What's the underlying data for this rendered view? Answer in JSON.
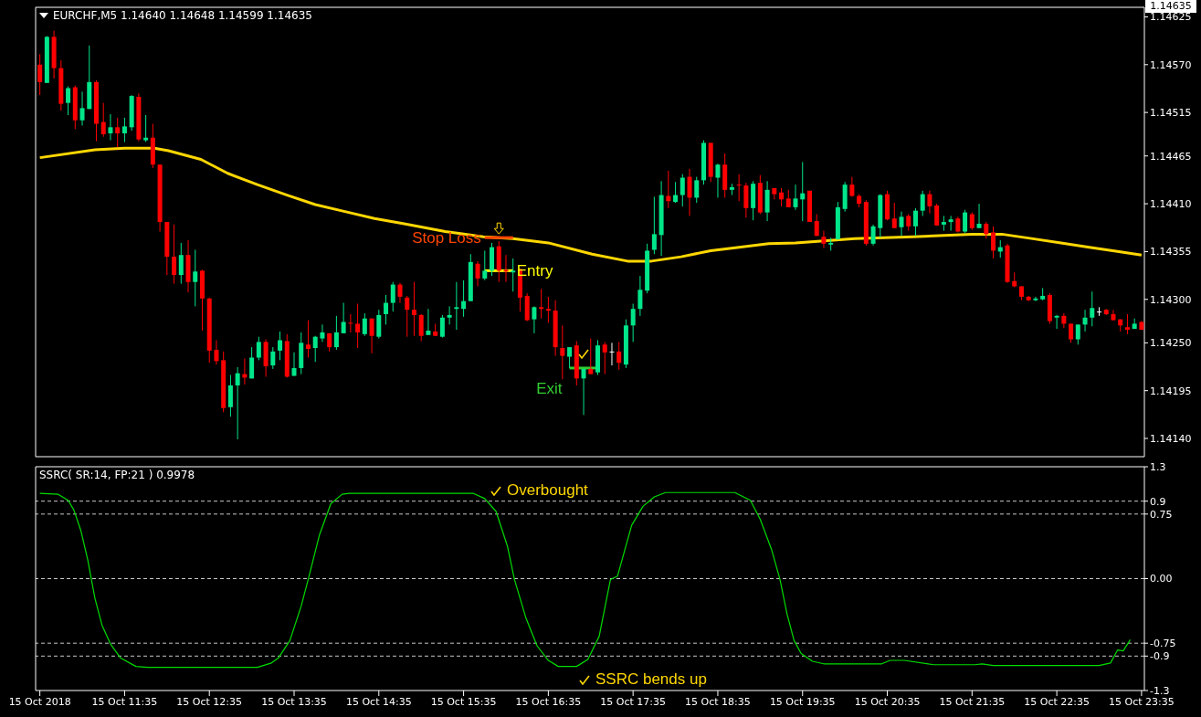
{
  "chart_data": [
    {
      "type": "candlestick",
      "title": "EURCHF,M5 1.14640 1.14648 1.14599 1.14635",
      "tick_labels": "y",
      "x": [
        "2018-10-15T10:35",
        "2018-10-15T10:40",
        "2018-10-15T10:45",
        "2018-10-15T10:50",
        "2018-10-15T10:55",
        "2018-10-15T11:00",
        "2018-10-15T11:05",
        "2018-10-15T11:10",
        "2018-10-15T11:15",
        "2018-10-15T11:20",
        "2018-10-15T11:25",
        "2018-10-15T11:30",
        "2018-10-15T11:35",
        "2018-10-15T11:40",
        "2018-10-15T11:45",
        "2018-10-15T11:50",
        "2018-10-15T11:55",
        "2018-10-15T12:00",
        "2018-10-15T12:05",
        "2018-10-15T12:10",
        "2018-10-15T12:15",
        "2018-10-15T12:20",
        "2018-10-15T12:25",
        "2018-10-15T12:30",
        "2018-10-15T12:35",
        "2018-10-15T12:40",
        "2018-10-15T12:45",
        "2018-10-15T12:50",
        "2018-10-15T12:55",
        "2018-10-15T13:00",
        "2018-10-15T13:05",
        "2018-10-15T13:10",
        "2018-10-15T13:15",
        "2018-10-15T13:20",
        "2018-10-15T13:25",
        "2018-10-15T13:30",
        "2018-10-15T13:35",
        "2018-10-15T13:40",
        "2018-10-15T13:45",
        "2018-10-15T13:50",
        "2018-10-15T13:55",
        "2018-10-15T14:00",
        "2018-10-15T14:05",
        "2018-10-15T14:10",
        "2018-10-15T14:15",
        "2018-10-15T14:20",
        "2018-10-15T14:25",
        "2018-10-15T14:30",
        "2018-10-15T14:35",
        "2018-10-15T14:40",
        "2018-10-15T14:45",
        "2018-10-15T14:50",
        "2018-10-15T14:55",
        "2018-10-15T15:00",
        "2018-10-15T15:05",
        "2018-10-15T15:10",
        "2018-10-15T15:15",
        "2018-10-15T15:20",
        "2018-10-15T15:25",
        "2018-10-15T15:30",
        "2018-10-15T15:35",
        "2018-10-15T15:40",
        "2018-10-15T15:45",
        "2018-10-15T15:50",
        "2018-10-15T15:55",
        "2018-10-15T16:00",
        "2018-10-15T16:05",
        "2018-10-15T16:10",
        "2018-10-15T16:15",
        "2018-10-15T16:20",
        "2018-10-15T16:25",
        "2018-10-15T16:30",
        "2018-10-15T16:35",
        "2018-10-15T16:40",
        "2018-10-15T16:45",
        "2018-10-15T16:50",
        "2018-10-15T16:55",
        "2018-10-15T17:00",
        "2018-10-15T17:05",
        "2018-10-15T17:10",
        "2018-10-15T17:15",
        "2018-10-15T17:20",
        "2018-10-15T17:25",
        "2018-10-15T17:30",
        "2018-10-15T17:35",
        "2018-10-15T17:40",
        "2018-10-15T17:45",
        "2018-10-15T17:50",
        "2018-10-15T17:55",
        "2018-10-15T18:00",
        "2018-10-15T18:05",
        "2018-10-15T18:10",
        "2018-10-15T18:15",
        "2018-10-15T18:20",
        "2018-10-15T18:25",
        "2018-10-15T18:30",
        "2018-10-15T18:35",
        "2018-10-15T18:40",
        "2018-10-15T18:45",
        "2018-10-15T18:50",
        "2018-10-15T18:55",
        "2018-10-15T19:00",
        "2018-10-15T19:05",
        "2018-10-15T19:10",
        "2018-10-15T19:15",
        "2018-10-15T19:20",
        "2018-10-15T19:25",
        "2018-10-15T19:30",
        "2018-10-15T19:35",
        "2018-10-15T19:40",
        "2018-10-15T19:45",
        "2018-10-15T19:50",
        "2018-10-15T19:55",
        "2018-10-15T20:00",
        "2018-10-15T20:05",
        "2018-10-15T20:10",
        "2018-10-15T20:15",
        "2018-10-15T20:20",
        "2018-10-15T20:25",
        "2018-10-15T20:30",
        "2018-10-15T20:35",
        "2018-10-15T20:40",
        "2018-10-15T20:45",
        "2018-10-15T20:50",
        "2018-10-15T20:55",
        "2018-10-15T21:00",
        "2018-10-15T21:05",
        "2018-10-15T21:10",
        "2018-10-15T21:15",
        "2018-10-15T21:20",
        "2018-10-15T21:25",
        "2018-10-15T21:30",
        "2018-10-15T21:35",
        "2018-10-15T21:40",
        "2018-10-15T21:45",
        "2018-10-15T21:50",
        "2018-10-15T21:55",
        "2018-10-15T22:00",
        "2018-10-15T22:05",
        "2018-10-15T22:10",
        "2018-10-15T22:15",
        "2018-10-15T22:20",
        "2018-10-15T22:25",
        "2018-10-15T22:30",
        "2018-10-15T22:35",
        "2018-10-15T22:40",
        "2018-10-15T22:45",
        "2018-10-15T22:50",
        "2018-10-15T22:55",
        "2018-10-15T23:00",
        "2018-10-15T23:05",
        "2018-10-15T23:10",
        "2018-10-15T23:15",
        "2018-10-15T23:20",
        "2018-10-15T23:25",
        "2018-10-15T23:30",
        "2018-10-15T23:35"
      ],
      "ohlc": [
        [
          1.1457,
          1.14582,
          1.14535,
          1.1455
        ],
        [
          1.14549,
          1.14603,
          1.14549,
          1.14602
        ],
        [
          1.14602,
          1.14609,
          1.14554,
          1.14566
        ],
        [
          1.14566,
          1.14575,
          1.14517,
          1.14525
        ],
        [
          1.14526,
          1.14545,
          1.14512,
          1.14543
        ],
        [
          1.14544,
          1.14546,
          1.14496,
          1.14506
        ],
        [
          1.14506,
          1.14539,
          1.145,
          1.1452
        ],
        [
          1.14519,
          1.14592,
          1.14519,
          1.1455
        ],
        [
          1.1455,
          1.14552,
          1.14482,
          1.14502
        ],
        [
          1.14504,
          1.14526,
          1.14487,
          1.1449
        ],
        [
          1.14491,
          1.14513,
          1.14483,
          1.14498
        ],
        [
          1.14498,
          1.14509,
          1.14475,
          1.14491
        ],
        [
          1.14491,
          1.14509,
          1.14481,
          1.14499
        ],
        [
          1.14498,
          1.14535,
          1.14494,
          1.14534
        ],
        [
          1.14533,
          1.14537,
          1.14482,
          1.14484
        ],
        [
          1.14483,
          1.14512,
          1.14481,
          1.14486
        ],
        [
          1.14486,
          1.14502,
          1.14451,
          1.14455
        ],
        [
          1.14455,
          1.14455,
          1.14378,
          1.14389
        ],
        [
          1.14389,
          1.14389,
          1.14328,
          1.14349
        ],
        [
          1.14349,
          1.14386,
          1.14318,
          1.14328
        ],
        [
          1.14328,
          1.14365,
          1.14318,
          1.14351
        ],
        [
          1.14351,
          1.14368,
          1.14308,
          1.1432
        ],
        [
          1.1432,
          1.14357,
          1.14292,
          1.14332
        ],
        [
          1.14333,
          1.14334,
          1.14264,
          1.14301
        ],
        [
          1.14301,
          1.14302,
          1.14227,
          1.14241
        ],
        [
          1.14242,
          1.14253,
          1.14225,
          1.14229
        ],
        [
          1.1423,
          1.1424,
          1.1417,
          1.14175
        ],
        [
          1.14176,
          1.14213,
          1.14165,
          1.14201
        ],
        [
          1.14201,
          1.14222,
          1.14139,
          1.14215
        ],
        [
          1.14214,
          1.14232,
          1.14202,
          1.1421
        ],
        [
          1.14209,
          1.14245,
          1.14209,
          1.14233
        ],
        [
          1.14233,
          1.14257,
          1.1423,
          1.14251
        ],
        [
          1.14251,
          1.14254,
          1.14211,
          1.14223
        ],
        [
          1.14224,
          1.14245,
          1.1422,
          1.1424
        ],
        [
          1.14241,
          1.14263,
          1.1423,
          1.14253
        ],
        [
          1.14252,
          1.1426,
          1.1421,
          1.14211
        ],
        [
          1.14212,
          1.14239,
          1.14212,
          1.14221
        ],
        [
          1.14221,
          1.14262,
          1.14214,
          1.1425
        ],
        [
          1.14248,
          1.14276,
          1.14233,
          1.14243
        ],
        [
          1.14244,
          1.14258,
          1.14228,
          1.14257
        ],
        [
          1.14255,
          1.14271,
          1.14251,
          1.14262
        ],
        [
          1.14261,
          1.14261,
          1.1424,
          1.14245
        ],
        [
          1.14245,
          1.14281,
          1.14242,
          1.14262
        ],
        [
          1.14261,
          1.14296,
          1.14261,
          1.14274
        ],
        [
          1.14273,
          1.14283,
          1.14262,
          1.14272
        ],
        [
          1.14272,
          1.14295,
          1.14244,
          1.14262
        ],
        [
          1.1426,
          1.14284,
          1.14258,
          1.14278
        ],
        [
          1.14278,
          1.14278,
          1.14238,
          1.14258
        ],
        [
          1.14257,
          1.14288,
          1.14255,
          1.14282
        ],
        [
          1.14283,
          1.14305,
          1.14271,
          1.14296
        ],
        [
          1.14296,
          1.1432,
          1.14286,
          1.14317
        ],
        [
          1.14317,
          1.14319,
          1.14296,
          1.14303
        ],
        [
          1.14302,
          1.14304,
          1.14257,
          1.14288
        ],
        [
          1.14288,
          1.1432,
          1.14258,
          1.14282
        ],
        [
          1.14282,
          1.14283,
          1.14252,
          1.14258
        ],
        [
          1.14259,
          1.14289,
          1.14259,
          1.14264
        ],
        [
          1.14263,
          1.14272,
          1.14258,
          1.14258
        ],
        [
          1.14257,
          1.14282,
          1.14256,
          1.14279
        ],
        [
          1.14279,
          1.14292,
          1.14271,
          1.14282
        ],
        [
          1.14289,
          1.1432,
          1.14265,
          1.14291
        ],
        [
          1.14289,
          1.14322,
          1.1428,
          1.14298
        ],
        [
          1.14298,
          1.14352,
          1.14298,
          1.14343
        ],
        [
          1.14341,
          1.14344,
          1.14315,
          1.14324
        ],
        [
          1.14324,
          1.14356,
          1.14322,
          1.14333
        ],
        [
          1.14333,
          1.14365,
          1.14327,
          1.1436
        ],
        [
          1.14361,
          1.14367,
          1.1432,
          1.14333
        ],
        [
          1.14334,
          1.14351,
          1.1432,
          1.14332
        ],
        [
          1.14331,
          1.14347,
          1.14309,
          1.14333
        ],
        [
          1.14335,
          1.14335,
          1.14286,
          1.14302
        ],
        [
          1.14304,
          1.14307,
          1.14275,
          1.14276
        ],
        [
          1.14277,
          1.14292,
          1.14261,
          1.14291
        ],
        [
          1.14291,
          1.14312,
          1.14278,
          1.14289
        ],
        [
          1.14289,
          1.14303,
          1.14273,
          1.14287
        ],
        [
          1.14287,
          1.14299,
          1.14235,
          1.14245
        ],
        [
          1.14244,
          1.1427,
          1.14208,
          1.14235
        ],
        [
          1.14234,
          1.14245,
          1.14221,
          1.14245
        ],
        [
          1.14247,
          1.14252,
          1.14201,
          1.14209
        ],
        [
          1.14209,
          1.1422,
          1.14167,
          1.1422
        ],
        [
          1.1422,
          1.14255,
          1.14214,
          1.14214
        ],
        [
          1.14216,
          1.14253,
          1.14213,
          1.14247
        ],
        [
          1.14248,
          1.14251,
          1.14214,
          1.14239
        ],
        [
          1.1424,
          1.1425,
          1.14224,
          1.1424
        ],
        [
          1.1424,
          1.14251,
          1.14219,
          1.14227
        ],
        [
          1.14225,
          1.14277,
          1.14221,
          1.1427
        ],
        [
          1.1427,
          1.14295,
          1.14251,
          1.14289
        ],
        [
          1.14289,
          1.14327,
          1.14281,
          1.14311
        ],
        [
          1.1431,
          1.14364,
          1.14307,
          1.14356
        ],
        [
          1.14357,
          1.14418,
          1.14352,
          1.14375
        ],
        [
          1.14374,
          1.14436,
          1.1435,
          1.1442
        ],
        [
          1.14419,
          1.14448,
          1.14405,
          1.14413
        ],
        [
          1.14412,
          1.14435,
          1.14411,
          1.1442
        ],
        [
          1.1442,
          1.14444,
          1.14407,
          1.1444
        ],
        [
          1.14441,
          1.1445,
          1.14396,
          1.14417
        ],
        [
          1.14417,
          1.14441,
          1.14411,
          1.14437
        ],
        [
          1.14437,
          1.14483,
          1.14432,
          1.1448
        ],
        [
          1.1448,
          1.1448,
          1.14435,
          1.14441
        ],
        [
          1.1444,
          1.14456,
          1.14417,
          1.14455
        ],
        [
          1.14455,
          1.14468,
          1.14417,
          1.14426
        ],
        [
          1.14426,
          1.14433,
          1.1442,
          1.14429
        ],
        [
          1.14432,
          1.14444,
          1.14413,
          1.14431
        ],
        [
          1.14431,
          1.14434,
          1.14394,
          1.14405
        ],
        [
          1.14405,
          1.14436,
          1.14391,
          1.14433
        ],
        [
          1.14434,
          1.14443,
          1.14398,
          1.144
        ],
        [
          1.144,
          1.14436,
          1.1439,
          1.14426
        ],
        [
          1.14428,
          1.14428,
          1.14415,
          1.14421
        ],
        [
          1.14423,
          1.14428,
          1.14407,
          1.14415
        ],
        [
          1.14416,
          1.14426,
          1.14406,
          1.14406
        ],
        [
          1.14406,
          1.14432,
          1.14403,
          1.14416
        ],
        [
          1.14415,
          1.14458,
          1.1439,
          1.14422
        ],
        [
          1.14425,
          1.14425,
          1.14389,
          1.14389
        ],
        [
          1.1439,
          1.14398,
          1.14373,
          1.14373
        ],
        [
          1.14372,
          1.14379,
          1.14359,
          1.14364
        ],
        [
          1.14363,
          1.14371,
          1.14356,
          1.14365
        ],
        [
          1.14369,
          1.14412,
          1.14369,
          1.14406
        ],
        [
          1.14404,
          1.14435,
          1.14401,
          1.14432
        ],
        [
          1.14432,
          1.14441,
          1.14418,
          1.14419
        ],
        [
          1.14419,
          1.14421,
          1.14406,
          1.1441
        ],
        [
          1.14412,
          1.14414,
          1.14362,
          1.14364
        ],
        [
          1.14364,
          1.14386,
          1.14362,
          1.14384
        ],
        [
          1.14382,
          1.14421,
          1.14371,
          1.1442
        ],
        [
          1.14421,
          1.14425,
          1.14391,
          1.14392
        ],
        [
          1.14393,
          1.14411,
          1.14382,
          1.14382
        ],
        [
          1.14383,
          1.14401,
          1.14373,
          1.14395
        ],
        [
          1.14396,
          1.14398,
          1.14379,
          1.14384
        ],
        [
          1.14384,
          1.14405,
          1.14373,
          1.14402
        ],
        [
          1.14402,
          1.14425,
          1.14396,
          1.14421
        ],
        [
          1.14421,
          1.14425,
          1.14399,
          1.14407
        ],
        [
          1.14408,
          1.1441,
          1.14385,
          1.14385
        ],
        [
          1.14386,
          1.14396,
          1.14379,
          1.14389
        ],
        [
          1.14389,
          1.14396,
          1.14379,
          1.14392
        ],
        [
          1.14393,
          1.14395,
          1.14377,
          1.14378
        ],
        [
          1.14378,
          1.14403,
          1.14376,
          1.144
        ],
        [
          1.14398,
          1.144,
          1.1438,
          1.14382
        ],
        [
          1.14382,
          1.1441,
          1.14382,
          1.14387
        ],
        [
          1.14387,
          1.14389,
          1.1437,
          1.14375
        ],
        [
          1.14377,
          1.14384,
          1.14347,
          1.14356
        ],
        [
          1.14355,
          1.14368,
          1.14348,
          1.1436
        ],
        [
          1.14362,
          1.14364,
          1.14319,
          1.1432
        ],
        [
          1.14321,
          1.14331,
          1.14314,
          1.14315
        ],
        [
          1.14315,
          1.14315,
          1.14299,
          1.14303
        ],
        [
          1.14303,
          1.14304,
          1.14298,
          1.14299
        ],
        [
          1.14299,
          1.14303,
          1.14298,
          1.14301
        ],
        [
          1.143,
          1.14313,
          1.14299,
          1.14304
        ],
        [
          1.14305,
          1.14307,
          1.14272,
          1.14275
        ],
        [
          1.14279,
          1.14282,
          1.14266,
          1.14281
        ],
        [
          1.14281,
          1.14284,
          1.14267,
          1.14272
        ],
        [
          1.14272,
          1.14272,
          1.1425,
          1.14254
        ],
        [
          1.14254,
          1.14271,
          1.14248,
          1.14271
        ],
        [
          1.14271,
          1.14288,
          1.14263,
          1.14279
        ],
        [
          1.14279,
          1.14309,
          1.14269,
          1.1429
        ],
        [
          1.14286,
          1.14291,
          1.14281,
          1.14286
        ],
        [
          1.14288,
          1.14289,
          1.14282,
          1.14283
        ],
        [
          1.14283,
          1.14288,
          1.14276,
          1.14276
        ],
        [
          1.14277,
          1.14277,
          1.14263,
          1.1427
        ],
        [
          1.14268,
          1.14283,
          1.1426,
          1.14265
        ],
        [
          1.14266,
          1.14278,
          1.14266,
          1.14272
        ],
        [
          1.14274,
          1.14275,
          1.14265,
          1.14265
        ]
      ],
      "colors": [
        "#ff0000",
        "#00e68a",
        "#ff0000",
        "#ff0000",
        "#00e68a",
        "#ff0000",
        "#00e68a",
        "#00e68a",
        "#ff0000",
        "#ff0000",
        "#00e68a",
        "#ff0000",
        "#00e68a",
        "#00e68a",
        "#ff0000",
        "#00e68a",
        "#ff0000",
        "#ff0000",
        "#ff0000",
        "#ff0000",
        "#00e68a",
        "#ff0000",
        "#00e68a",
        "#ff0000",
        "#ff0000",
        "#ff0000",
        "#ff0000",
        "#00e68a",
        "#00e68a",
        "#ff0000",
        "#00e68a",
        "#00e68a",
        "#ff0000",
        "#00e68a",
        "#00e68a",
        "#ff0000",
        "#00e68a",
        "#00e68a",
        "#ff0000",
        "#00e68a",
        "#00e68a",
        "#ff0000",
        "#00e68a",
        "#00e68a",
        "#ff0000",
        "#ff0000",
        "#00e68a",
        "#ff0000",
        "#00e68a",
        "#00e68a",
        "#00e68a",
        "#ff0000",
        "#ff0000",
        "#ff0000",
        "#ff0000",
        "#00e68a",
        "#ff0000",
        "#00e68a",
        "#00e68a",
        "#00e68a",
        "#00e68a",
        "#00e68a",
        "#ff0000",
        "#00e68a",
        "#00e68a",
        "#ff0000",
        "#ff0000",
        "#00e68a",
        "#ff0000",
        "#ff0000",
        "#00e68a",
        "#ff0000",
        "#ff0000",
        "#ff0000",
        "#ff0000",
        "#00e68a",
        "#ff0000",
        "#00e68a",
        "#ff0000",
        "#00e68a",
        "#ff0000",
        "#ffffff",
        "#ff0000",
        "#00e68a",
        "#00e68a",
        "#00e68a",
        "#00e68a",
        "#00e68a",
        "#00e68a",
        "#ff0000",
        "#00e68a",
        "#00e68a",
        "#ff0000",
        "#00e68a",
        "#00e68a",
        "#ff0000",
        "#00e68a",
        "#ff0000",
        "#00e68a",
        "#ff0000",
        "#ff0000",
        "#00e68a",
        "#ff0000",
        "#00e68a",
        "#ff0000",
        "#ff0000",
        "#ff0000",
        "#00e68a",
        "#00e68a",
        "#ff0000",
        "#ff0000",
        "#ff0000",
        "#00e68a",
        "#00e68a",
        "#00e68a",
        "#ff0000",
        "#ff0000",
        "#ff0000",
        "#00e68a",
        "#00e68a",
        "#ff0000",
        "#ff0000",
        "#00e68a",
        "#ff0000",
        "#00e68a",
        "#00e68a",
        "#ff0000",
        "#ff0000",
        "#00e68a",
        "#00e68a",
        "#ff0000",
        "#00e68a",
        "#ff0000",
        "#00e68a",
        "#ff0000",
        "#ff0000",
        "#00e68a",
        "#ff0000",
        "#ff0000",
        "#ff0000",
        "#ff0000",
        "#00e68a",
        "#00e68a",
        "#ff0000",
        "#00e68a",
        "#ff0000",
        "#ff0000",
        "#00e68a",
        "#00e68a",
        "#00e68a",
        "#ffffff",
        "#ff0000",
        "#ff0000",
        "#ff0000",
        "#ff0000",
        "#00e68a",
        "#ff0000"
      ],
      "series": [
        {
          "type": "line",
          "color": "#ffd700",
          "x": [
            "2018-10-15T10:35",
            "2018-10-15T11:14",
            "2018-10-15T11:35",
            "2018-10-15T11:56",
            "2018-10-15T12:06",
            "2018-10-15T12:29",
            "2018-10-15T12:48",
            "2018-10-15T13:09",
            "2018-10-15T13:30",
            "2018-10-15T13:50",
            "2018-10-15T14:11",
            "2018-10-15T14:32",
            "2018-10-15T14:53",
            "2018-10-15T15:22",
            "2018-10-15T15:49",
            "2018-10-15T16:10",
            "2018-10-15T16:35",
            "2018-10-15T17:06",
            "2018-10-15T17:31",
            "2018-10-15T17:48",
            "2018-10-15T18:09",
            "2018-10-15T18:30",
            "2018-10-15T18:50",
            "2018-10-15T19:11",
            "2018-10-15T19:30",
            "2018-10-15T20:12",
            "2018-10-15T20:53",
            "2018-10-15T21:35",
            "2018-10-15T21:56",
            "2018-10-15T22:17",
            "2018-10-15T22:38",
            "2018-10-15T22:58",
            "2018-10-15T23:19",
            "2018-10-15T23:35"
          ],
          "values": [
            1.14463,
            1.14472,
            1.14474,
            1.14474,
            1.14471,
            1.14461,
            1.14445,
            1.14432,
            1.1442,
            1.14409,
            1.14401,
            1.14393,
            1.14387,
            1.14378,
            1.14372,
            1.1437,
            1.14365,
            1.14352,
            1.14344,
            1.14344,
            1.14349,
            1.14356,
            1.1436,
            1.14364,
            1.14365,
            1.1437,
            1.14372,
            1.14375,
            1.14375,
            1.1437,
            1.14365,
            1.1436,
            1.14355,
            1.14351
          ]
        },
        {
          "type": "line",
          "color": "#ff4500",
          "x": [
            "2018-10-15T15:50",
            "2018-10-15T16:10"
          ],
          "values": [
            1.14371,
            1.14371
          ]
        },
        {
          "type": "line",
          "color": "#ffff00",
          "x": [
            "2018-10-15T15:50",
            "2018-10-15T16:10"
          ],
          "values": [
            1.14333,
            1.14333
          ]
        },
        {
          "type": "line",
          "color": "#32cd32",
          "x": [
            "2018-10-15T16:50",
            "2018-10-15T17:10"
          ],
          "values": [
            1.14221,
            1.14221
          ]
        }
      ],
      "xlim": [
        "2018-10-15T10:32",
        "2018-10-15T23:37"
      ],
      "ylim": [
        1.14119,
        1.14636
      ],
      "yticks": [
        1.14625,
        {
          "value": 1.1457,
          "label": "1.14570"
        },
        1.14515,
        1.14465,
        {
          "value": 1.1441,
          "label": "1.14410"
        },
        1.14355,
        {
          "value": 1.143,
          "label": "1.14300"
        },
        {
          "value": 1.1425,
          "label": "1.14250"
        },
        1.14195,
        {
          "value": 1.1414,
          "label": "1.14140"
        }
      ],
      "annotations": [
        "Stop Loss",
        "Entry",
        "Exit",
        "1.14635"
      ]
    },
    {
      "type": "line",
      "title": "SSRC( SR:14, FP:21 ) 0.9978",
      "series": [
        {
          "color": "#00dd00",
          "x": [
            "2018-10-15T10:35",
            "2018-10-15T10:48",
            "2018-10-15T10:55",
            "2018-10-15T10:59",
            "2018-10-15T11:04",
            "2018-10-15T11:09",
            "2018-10-15T11:14",
            "2018-10-15T11:19",
            "2018-10-15T11:25",
            "2018-10-15T11:32",
            "2018-10-15T11:43",
            "2018-10-15T11:51",
            "2018-10-15T13:09",
            "2018-10-15T13:19",
            "2018-10-15T13:24",
            "2018-10-15T13:32",
            "2018-10-15T13:40",
            "2018-10-15T13:45",
            "2018-10-15T13:53",
            "2018-10-15T14:01",
            "2018-10-15T14:09",
            "2018-10-15T14:14",
            "2018-10-15T15:42",
            "2018-10-15T15:50",
            "2018-10-15T15:58",
            "2018-10-15T16:06",
            "2018-10-15T16:11",
            "2018-10-15T16:19",
            "2018-10-15T16:27",
            "2018-10-15T16:35",
            "2018-10-15T16:42",
            "2018-10-15T16:55",
            "2018-10-15T17:03",
            "2018-10-15T17:11",
            "2018-10-15T17:19",
            "2018-10-15T17:24",
            "2018-10-15T17:34",
            "2018-10-15T17:42",
            "2018-10-15T17:50",
            "2018-10-15T17:58",
            "2018-10-15T18:47",
            "2018-10-15T18:58",
            "2018-10-15T19:05",
            "2018-10-15T19:13",
            "2018-10-15T19:19",
            "2018-10-15T19:24",
            "2018-10-15T19:29",
            "2018-10-15T19:34",
            "2018-10-15T19:42",
            "2018-10-15T19:50",
            "2018-10-15T20:31",
            "2018-10-15T20:37",
            "2018-10-15T20:47",
            "2018-10-15T21:08",
            "2018-10-15T21:37",
            "2018-10-15T21:42",
            "2018-10-15T21:50",
            "2018-10-15T23:05",
            "2018-10-15T23:13",
            "2018-10-15T23:18",
            "2018-10-15T23:22",
            "2018-10-15T23:27"
          ],
          "values": [
            0.99,
            0.98,
            0.91,
            0.8,
            0.56,
            0.21,
            -0.23,
            -0.54,
            -0.76,
            -0.92,
            -1.02,
            -1.03,
            -1.03,
            -0.98,
            -0.92,
            -0.72,
            -0.32,
            -0.01,
            0.51,
            0.87,
            0.98,
            0.99,
            0.99,
            0.93,
            0.78,
            0.38,
            -0.01,
            -0.45,
            -0.78,
            -0.95,
            -1.02,
            -1.02,
            -0.94,
            -0.67,
            -0.01,
            0.03,
            0.62,
            0.84,
            0.95,
            1.0,
            1.0,
            0.91,
            0.69,
            0.34,
            -0.01,
            -0.41,
            -0.72,
            -0.87,
            -0.96,
            -0.99,
            -0.99,
            -0.95,
            -0.95,
            -1.0,
            -1.0,
            -0.99,
            -1.01,
            -1.01,
            -0.98,
            -0.83,
            -0.84,
            -0.71
          ]
        }
      ],
      "xlim": [
        "2018-10-15T10:32",
        "2018-10-15T23:37"
      ],
      "xticks": [
        {
          "value": "2018-10-15T10:35",
          "label": "15 Oct 2018"
        },
        {
          "value": "2018-10-15T11:35",
          "label": "15 Oct 11:35"
        },
        {
          "value": "2018-10-15T12:35",
          "label": "15 Oct 12:35"
        },
        {
          "value": "2018-10-15T13:35",
          "label": "15 Oct 13:35"
        },
        {
          "value": "2018-10-15T14:35",
          "label": "15 Oct 14:35"
        },
        {
          "value": "2018-10-15T15:35",
          "label": "15 Oct 15:35"
        },
        {
          "value": "2018-10-15T16:35",
          "label": "15 Oct 16:35"
        },
        {
          "value": "2018-10-15T17:35",
          "label": "15 Oct 17:35"
        },
        {
          "value": "2018-10-15T18:35",
          "label": "15 Oct 18:35"
        },
        {
          "value": "2018-10-15T19:35",
          "label": "15 Oct 19:35"
        },
        {
          "value": "2018-10-15T20:35",
          "label": "15 Oct 20:35"
        },
        {
          "value": "2018-10-15T21:35",
          "label": "15 Oct 21:35"
        },
        {
          "value": "2018-10-15T22:35",
          "label": "15 Oct 22:35"
        },
        {
          "value": "2018-10-15T23:35",
          "label": "15 Oct 23:35"
        }
      ],
      "ylim": [
        -1.3,
        1.3
      ],
      "yticks": [
        1.3,
        0.9,
        0.75,
        {
          "value": 0,
          "label": "0.00"
        },
        -0.75,
        -0.9,
        -1.3
      ],
      "ref_lines": [
        {
          "axis": "y",
          "value": 0.9,
          "color": "#c8c8c8",
          "line_style": "dashed"
        },
        {
          "axis": "y",
          "value": 0.75,
          "color": "#c8c8c8",
          "line_style": "dashed"
        },
        {
          "axis": "y",
          "value": 0,
          "color": "#c8c8c8",
          "line_style": "dashed"
        },
        {
          "axis": "y",
          "value": -0.75,
          "color": "#c8c8c8",
          "line_style": "dashed"
        },
        {
          "axis": "y",
          "value": -0.9,
          "color": "#c8c8c8",
          "line_style": "dashed"
        }
      ],
      "annotations": [
        "Overbought",
        "SSRC bends up"
      ]
    }
  ]
}
